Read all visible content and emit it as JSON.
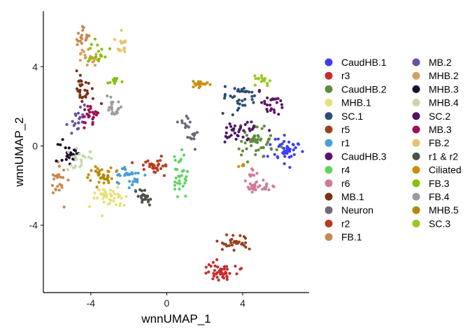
{
  "chart_data": {
    "type": "scatter",
    "xlabel": "wnnUMAP_1",
    "ylabel": "wnnUMAP_2",
    "xlim": [
      -6.5,
      7.5
    ],
    "ylim": [
      -7.4,
      6.8
    ],
    "x_ticks": [
      -4,
      0,
      4
    ],
    "y_ticks": [
      -4,
      0,
      4
    ],
    "grid": false,
    "legend_position": "right",
    "series": [
      {
        "name": "CaudHB.1",
        "color": "#3d3df5",
        "clusters": [
          {
            "cx": 6.3,
            "cy": -0.2,
            "sx": 0.45,
            "sy": 0.35,
            "n": 45
          }
        ]
      },
      {
        "name": "r3",
        "color": "#c62d2d",
        "clusters": [
          {
            "cx": 2.8,
            "cy": -6.3,
            "sx": 0.45,
            "sy": 0.25,
            "n": 45
          }
        ]
      },
      {
        "name": "CaudHB.2",
        "color": "#5e8c3c",
        "clusters": [
          {
            "cx": 4.8,
            "cy": 0.3,
            "sx": 0.45,
            "sy": 0.4,
            "n": 50
          }
        ]
      },
      {
        "name": "MHB.1",
        "color": "#e8e07a",
        "clusters": [
          {
            "cx": -3.1,
            "cy": -2.6,
            "sx": 0.5,
            "sy": 0.3,
            "n": 45
          }
        ]
      },
      {
        "name": "SC.1",
        "color": "#2e4c6e",
        "clusters": [
          {
            "cx": 3.9,
            "cy": 2.5,
            "sx": 0.5,
            "sy": 0.3,
            "n": 35
          }
        ]
      },
      {
        "name": "r5",
        "color": "#9a3f1f",
        "clusters": [
          {
            "cx": 3.6,
            "cy": -4.9,
            "sx": 0.4,
            "sy": 0.2,
            "n": 30
          }
        ]
      },
      {
        "name": "r1",
        "color": "#4a9fd4",
        "clusters": [
          {
            "cx": -2.1,
            "cy": -1.6,
            "sx": 0.35,
            "sy": 0.3,
            "n": 35
          }
        ]
      },
      {
        "name": "CaudHB.3",
        "color": "#5a1466",
        "clusters": [
          {
            "cx": 5.4,
            "cy": 2.1,
            "sx": 0.45,
            "sy": 0.3,
            "n": 25
          }
        ]
      },
      {
        "name": "r4",
        "color": "#5fd45f",
        "clusters": [
          {
            "cx": 0.7,
            "cy": -1.5,
            "sx": 0.18,
            "sy": 0.55,
            "n": 30
          }
        ]
      },
      {
        "name": "r6",
        "color": "#cf7b9a",
        "clusters": [
          {
            "cx": 4.5,
            "cy": -1.8,
            "sx": 0.2,
            "sy": 0.35,
            "n": 15
          },
          {
            "cx": 4.9,
            "cy": -2.1,
            "sx": 0.35,
            "sy": 0.15,
            "n": 25
          }
        ]
      },
      {
        "name": "MB.1",
        "color": "#7a3214",
        "clusters": [
          {
            "cx": -4.5,
            "cy": 3.0,
            "sx": 0.25,
            "sy": 0.35,
            "n": 30
          }
        ]
      },
      {
        "name": "Neuron",
        "color": "#6f6879",
        "clusters": [
          {
            "cx": 0.9,
            "cy": 1.2,
            "sx": 0.15,
            "sy": 0.2,
            "n": 10
          },
          {
            "cx": 1.4,
            "cy": 0.6,
            "sx": 0.2,
            "sy": 0.25,
            "n": 12
          }
        ]
      },
      {
        "name": "r2",
        "color": "#b83a1f",
        "clusters": [
          {
            "cx": -0.6,
            "cy": -1.0,
            "sx": 0.35,
            "sy": 0.22,
            "n": 30
          }
        ]
      },
      {
        "name": "FB.1",
        "color": "#c98850",
        "clusters": [
          {
            "cx": -5.7,
            "cy": -1.8,
            "sx": 0.2,
            "sy": 0.4,
            "n": 25
          },
          {
            "cx": -4.4,
            "cy": 5.5,
            "sx": 0.2,
            "sy": 0.25,
            "n": 20
          }
        ]
      },
      {
        "name": "MB.2",
        "color": "#6a4fa0",
        "clusters": [
          {
            "cx": -4.8,
            "cy": 1.3,
            "sx": 0.25,
            "sy": 0.3,
            "n": 20
          }
        ]
      },
      {
        "name": "MHB.2",
        "color": "#d4a060",
        "clusters": [
          {
            "cx": -4.1,
            "cy": 4.5,
            "sx": 0.3,
            "sy": 0.25,
            "n": 20
          }
        ]
      },
      {
        "name": "MHB.3",
        "color": "#1e0e2e",
        "clusters": [
          {
            "cx": -5.2,
            "cy": -0.3,
            "sx": 0.25,
            "sy": 0.3,
            "n": 25
          }
        ]
      },
      {
        "name": "MHB.4",
        "color": "#c6d8aa",
        "clusters": [
          {
            "cx": -4.6,
            "cy": -0.6,
            "sx": 0.3,
            "sy": 0.3,
            "n": 25
          }
        ]
      },
      {
        "name": "SC.2",
        "color": "#4e1666",
        "clusters": [
          {
            "cx": 3.8,
            "cy": 0.8,
            "sx": 0.5,
            "sy": 0.3,
            "n": 35
          }
        ]
      },
      {
        "name": "MB.3",
        "color": "#9b0f57",
        "clusters": [
          {
            "cx": -4.0,
            "cy": 1.6,
            "sx": 0.3,
            "sy": 0.3,
            "n": 25
          }
        ]
      },
      {
        "name": "FB.2",
        "color": "#e6c46a",
        "clusters": [
          {
            "cx": -2.4,
            "cy": 5.1,
            "sx": 0.2,
            "sy": 0.25,
            "n": 15
          }
        ]
      },
      {
        "name": "r1 & r2",
        "color": "#4b5246",
        "clusters": [
          {
            "cx": -1.2,
            "cy": -2.6,
            "sx": 0.25,
            "sy": 0.2,
            "n": 25
          }
        ]
      },
      {
        "name": "Ciliated",
        "color": "#c98e0a",
        "clusters": [
          {
            "cx": 1.7,
            "cy": 3.1,
            "sx": 0.25,
            "sy": 0.1,
            "n": 18
          },
          {
            "cx": -3.5,
            "cy": -1.5,
            "sx": 0.3,
            "sy": 0.3,
            "n": 20
          },
          {
            "cx": 3.9,
            "cy": -1.0,
            "sx": 0.1,
            "sy": 0.1,
            "n": 4
          }
        ]
      },
      {
        "name": "FB.3",
        "color": "#86c00a",
        "clusters": [
          {
            "cx": -3.6,
            "cy": 4.7,
            "sx": 0.25,
            "sy": 0.35,
            "n": 18
          },
          {
            "cx": -2.7,
            "cy": 3.3,
            "sx": 0.15,
            "sy": 0.15,
            "n": 10
          }
        ]
      },
      {
        "name": "FB.4",
        "color": "#9b9b9b",
        "clusters": [
          {
            "cx": -2.8,
            "cy": 1.9,
            "sx": 0.25,
            "sy": 0.25,
            "n": 20
          }
        ]
      },
      {
        "name": "MHB.5",
        "color": "#b08a0a",
        "clusters": [
          {
            "cx": -3.4,
            "cy": -1.6,
            "sx": 0.25,
            "sy": 0.2,
            "n": 15
          }
        ]
      },
      {
        "name": "SC.3",
        "color": "#98c820",
        "clusters": [
          {
            "cx": 5.0,
            "cy": 3.3,
            "sx": 0.3,
            "sy": 0.15,
            "n": 15
          }
        ]
      }
    ]
  }
}
